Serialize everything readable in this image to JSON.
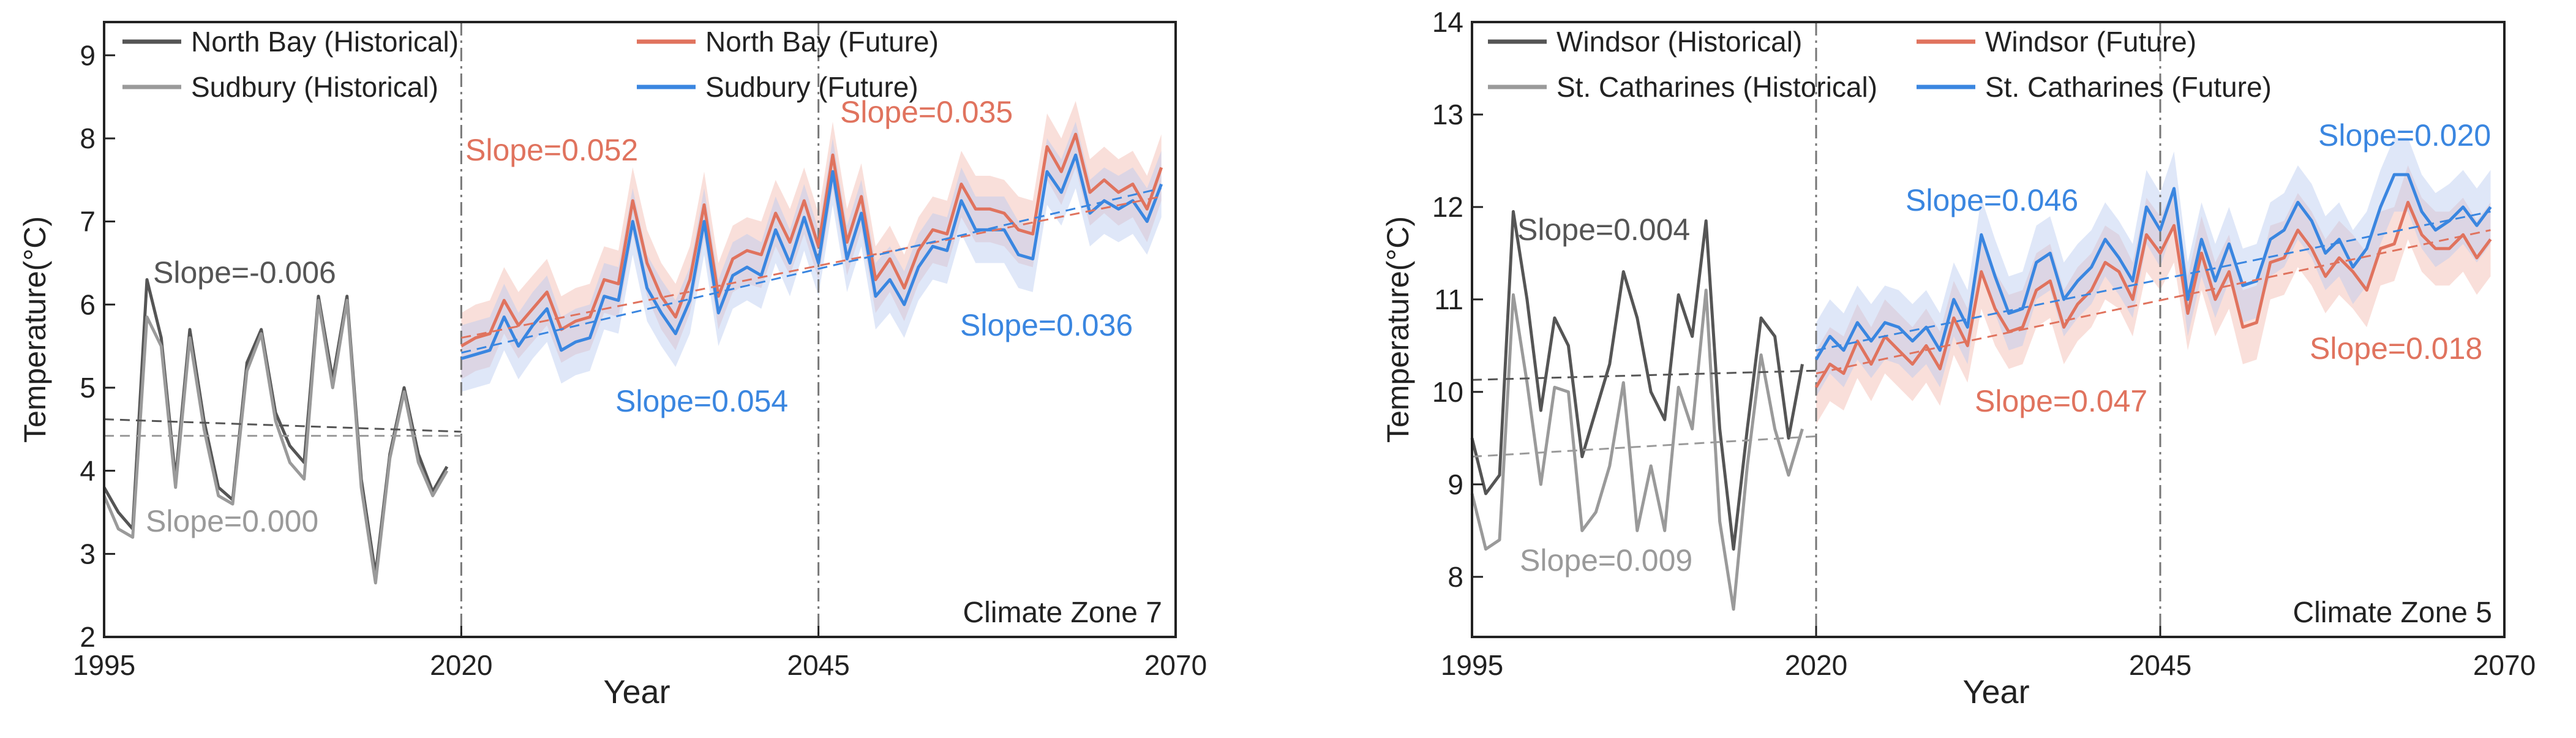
{
  "chart_data": [
    {
      "type": "line",
      "panel_label": "Climate Zone 7",
      "xlabel": "Year",
      "ylabel": "Temperature(°C)",
      "xlim": [
        1995,
        2070
      ],
      "ylim": [
        2,
        9.4
      ],
      "x_ticks": [
        1995,
        2020,
        2045,
        2070
      ],
      "y_ticks": [
        2,
        3,
        4,
        5,
        6,
        7,
        8,
        9
      ],
      "dividers": [
        2020,
        2045
      ],
      "series": [
        {
          "name": "North Bay (Historical)",
          "color": "#555555",
          "width": 5,
          "x": [
            1995,
            1996,
            1997,
            1998,
            1999,
            2000,
            2001,
            2002,
            2003,
            2004,
            2005,
            2006,
            2007,
            2008,
            2009,
            2010,
            2011,
            2012,
            2013,
            2014,
            2015,
            2016,
            2017,
            2018,
            2019
          ],
          "values": [
            3.8,
            3.5,
            3.3,
            6.3,
            5.6,
            3.9,
            5.7,
            4.6,
            3.8,
            3.65,
            5.3,
            5.7,
            4.7,
            4.3,
            4.1,
            6.1,
            5.1,
            6.1,
            3.9,
            2.75,
            4.2,
            5.0,
            4.2,
            3.75,
            4.05
          ]
        },
        {
          "name": "Sudbury (Historical)",
          "color": "#9a9a9a",
          "width": 5,
          "x": [
            1995,
            1996,
            1997,
            1998,
            1999,
            2000,
            2001,
            2002,
            2003,
            2004,
            2005,
            2006,
            2007,
            2008,
            2009,
            2010,
            2011,
            2012,
            2013,
            2014,
            2015,
            2016,
            2017,
            2018,
            2019
          ],
          "values": [
            3.7,
            3.3,
            3.2,
            5.85,
            5.5,
            3.8,
            5.6,
            4.5,
            3.7,
            3.6,
            5.2,
            5.65,
            4.6,
            4.1,
            3.9,
            6.05,
            5.0,
            6.05,
            3.8,
            2.65,
            4.15,
            4.95,
            4.1,
            3.7,
            4.0
          ]
        },
        {
          "name": "North Bay (Future)",
          "color": "#e0735e",
          "band_color": "#f2b8ad",
          "width": 5,
          "x": [
            2020,
            2021,
            2022,
            2023,
            2024,
            2025,
            2026,
            2027,
            2028,
            2029,
            2030,
            2031,
            2032,
            2033,
            2034,
            2035,
            2036,
            2037,
            2038,
            2039,
            2040,
            2041,
            2042,
            2043,
            2044,
            2045,
            2046,
            2047,
            2048,
            2049,
            2050,
            2051,
            2052,
            2053,
            2054,
            2055,
            2056,
            2057,
            2058,
            2059,
            2060,
            2061,
            2062,
            2063,
            2064,
            2065,
            2066,
            2067,
            2068,
            2069
          ],
          "values": [
            5.5,
            5.6,
            5.65,
            6.05,
            5.75,
            5.95,
            6.15,
            5.7,
            5.8,
            5.85,
            6.3,
            6.25,
            7.25,
            6.5,
            6.1,
            5.85,
            6.3,
            7.2,
            6.1,
            6.55,
            6.65,
            6.6,
            7.1,
            6.75,
            7.25,
            6.7,
            7.8,
            6.75,
            7.3,
            6.3,
            6.55,
            6.2,
            6.65,
            6.9,
            6.85,
            7.45,
            7.15,
            7.15,
            7.1,
            6.9,
            6.85,
            7.9,
            7.6,
            8.05,
            7.35,
            7.5,
            7.35,
            7.45,
            7.15,
            7.65
          ],
          "band": 0.4
        },
        {
          "name": "Sudbury (Future)",
          "color": "#3a86e0",
          "band_color": "#b8c9f0",
          "width": 5,
          "x": [
            2020,
            2021,
            2022,
            2023,
            2024,
            2025,
            2026,
            2027,
            2028,
            2029,
            2030,
            2031,
            2032,
            2033,
            2034,
            2035,
            2036,
            2037,
            2038,
            2039,
            2040,
            2041,
            2042,
            2043,
            2044,
            2045,
            2046,
            2047,
            2048,
            2049,
            2050,
            2051,
            2052,
            2053,
            2054,
            2055,
            2056,
            2057,
            2058,
            2059,
            2060,
            2061,
            2062,
            2063,
            2064,
            2065,
            2066,
            2067,
            2068,
            2069
          ],
          "values": [
            5.35,
            5.4,
            5.45,
            5.85,
            5.5,
            5.75,
            5.95,
            5.45,
            5.55,
            5.6,
            6.1,
            6.05,
            7.0,
            6.2,
            5.9,
            5.65,
            6.05,
            7.0,
            5.9,
            6.35,
            6.45,
            6.35,
            6.9,
            6.5,
            7.05,
            6.5,
            7.6,
            6.55,
            7.1,
            6.1,
            6.3,
            6.0,
            6.45,
            6.7,
            6.65,
            7.25,
            6.9,
            6.9,
            6.9,
            6.6,
            6.55,
            7.6,
            7.35,
            7.8,
            7.1,
            7.25,
            7.15,
            7.25,
            7.0,
            7.45
          ],
          "band": 0.4
        }
      ],
      "trendlines": [
        {
          "series": "North Bay (Historical)",
          "x": [
            1995,
            2020
          ],
          "y": [
            4.62,
            4.47
          ],
          "color": "#555555"
        },
        {
          "series": "Sudbury (Historical)",
          "x": [
            1995,
            2020
          ],
          "y": [
            4.42,
            4.42
          ],
          "color": "#9a9a9a"
        },
        {
          "series": "North Bay (Future)",
          "x": [
            2020,
            2069
          ],
          "y": [
            5.6,
            7.3
          ],
          "color": "#e0735e"
        },
        {
          "series": "Sudbury (Future)",
          "x": [
            2020,
            2069
          ],
          "y": [
            5.42,
            7.4
          ],
          "color": "#3a86e0"
        }
      ],
      "annotations": [
        {
          "text": "Slope=-0.006",
          "color": "#555555"
        },
        {
          "text": "Slope=0.000",
          "color": "#9a9a9a"
        },
        {
          "text": "Slope=0.052",
          "color": "#e0735e"
        },
        {
          "text": "Slope=0.054",
          "color": "#3a86e0"
        },
        {
          "text": "Slope=0.035",
          "color": "#e0735e"
        },
        {
          "text": "Slope=0.036",
          "color": "#3a86e0"
        }
      ],
      "legend": [
        {
          "label": "North Bay (Historical)",
          "color": "#555555"
        },
        {
          "label": "North Bay (Future)",
          "color": "#e0735e"
        },
        {
          "label": "Sudbury (Historical)",
          "color": "#9a9a9a"
        },
        {
          "label": "Sudbury (Future)",
          "color": "#3a86e0"
        }
      ],
      "legend_position": "top-left"
    },
    {
      "type": "line",
      "panel_label": "Climate Zone 5",
      "xlabel": "Year",
      "ylabel": "Temperature(°C)",
      "xlim": [
        1995,
        2070
      ],
      "ylim": [
        7.35,
        14
      ],
      "x_ticks": [
        1995,
        2020,
        2045,
        2070
      ],
      "y_ticks": [
        8,
        9,
        10,
        11,
        12,
        13,
        14
      ],
      "dividers": [
        2020,
        2045
      ],
      "series": [
        {
          "name": "Windsor (Historical)",
          "color": "#555555",
          "width": 5,
          "x": [
            1995,
            1996,
            1997,
            1998,
            1999,
            2000,
            2001,
            2002,
            2003,
            2004,
            2005,
            2006,
            2007,
            2008,
            2009,
            2010,
            2011,
            2012,
            2013,
            2014,
            2015,
            2016,
            2017,
            2018,
            2019
          ],
          "values": [
            9.5,
            8.9,
            9.1,
            11.95,
            11.0,
            9.8,
            10.8,
            10.5,
            9.3,
            9.8,
            10.3,
            11.3,
            10.8,
            10.0,
            9.7,
            11.05,
            10.6,
            11.85,
            9.6,
            8.3,
            9.6,
            10.8,
            10.6,
            9.5,
            10.3
          ]
        },
        {
          "name": "St. Catharines (Historical)",
          "color": "#9a9a9a",
          "width": 5,
          "x": [
            1995,
            1996,
            1997,
            1998,
            1999,
            2000,
            2001,
            2002,
            2003,
            2004,
            2005,
            2006,
            2007,
            2008,
            2009,
            2010,
            2011,
            2012,
            2013,
            2014,
            2015,
            2016,
            2017,
            2018,
            2019
          ],
          "values": [
            8.9,
            8.3,
            8.4,
            11.05,
            10.1,
            9.0,
            10.05,
            10.0,
            8.5,
            8.7,
            9.2,
            10.1,
            8.5,
            9.2,
            8.5,
            10.05,
            9.6,
            11.1,
            8.6,
            7.65,
            9.2,
            10.4,
            9.6,
            9.1,
            9.6
          ]
        },
        {
          "name": "Windsor (Future)",
          "color": "#e0735e",
          "band_color": "#f2b8ad",
          "width": 5,
          "x": [
            2020,
            2021,
            2022,
            2023,
            2024,
            2025,
            2026,
            2027,
            2028,
            2029,
            2030,
            2031,
            2032,
            2033,
            2034,
            2035,
            2036,
            2037,
            2038,
            2039,
            2040,
            2041,
            2042,
            2043,
            2044,
            2045,
            2046,
            2047,
            2048,
            2049,
            2050,
            2051,
            2052,
            2053,
            2054,
            2055,
            2056,
            2057,
            2058,
            2059,
            2060,
            2061,
            2062,
            2063,
            2064,
            2065,
            2066,
            2067,
            2068,
            2069
          ],
          "values": [
            10.05,
            10.3,
            10.2,
            10.55,
            10.3,
            10.6,
            10.45,
            10.3,
            10.5,
            10.25,
            10.8,
            10.5,
            11.3,
            10.9,
            10.65,
            10.7,
            11.1,
            11.2,
            10.7,
            10.95,
            11.1,
            11.4,
            11.3,
            11.0,
            11.7,
            11.5,
            11.8,
            10.85,
            11.5,
            11.0,
            11.3,
            10.7,
            10.75,
            11.4,
            11.45,
            11.75,
            11.55,
            11.25,
            11.45,
            11.3,
            11.1,
            11.55,
            11.6,
            12.05,
            11.7,
            11.55,
            11.55,
            11.7,
            11.45,
            11.65
          ],
          "band": 0.4
        },
        {
          "name": "St. Catharines (Future)",
          "color": "#3a86e0",
          "band_color": "#b8c9f0",
          "width": 5,
          "x": [
            2020,
            2021,
            2022,
            2023,
            2024,
            2025,
            2026,
            2027,
            2028,
            2029,
            2030,
            2031,
            2032,
            2033,
            2034,
            2035,
            2036,
            2037,
            2038,
            2039,
            2040,
            2041,
            2042,
            2043,
            2044,
            2045,
            2046,
            2047,
            2048,
            2049,
            2050,
            2051,
            2052,
            2053,
            2054,
            2055,
            2056,
            2057,
            2058,
            2059,
            2060,
            2061,
            2062,
            2063,
            2064,
            2065,
            2066,
            2067,
            2068,
            2069
          ],
          "values": [
            10.35,
            10.6,
            10.45,
            10.75,
            10.55,
            10.75,
            10.7,
            10.55,
            10.7,
            10.45,
            11.0,
            10.7,
            11.7,
            11.25,
            10.85,
            10.9,
            11.4,
            11.5,
            11.0,
            11.2,
            11.35,
            11.65,
            11.45,
            11.2,
            12.0,
            11.75,
            12.2,
            11.0,
            11.65,
            11.2,
            11.6,
            11.15,
            11.2,
            11.65,
            11.75,
            12.05,
            11.85,
            11.5,
            11.65,
            11.35,
            11.55,
            12.0,
            12.35,
            12.35,
            11.95,
            11.75,
            11.85,
            12.0,
            11.8,
            12.0
          ],
          "band": 0.4
        }
      ],
      "trendlines": [
        {
          "series": "Windsor (Historical)",
          "x": [
            1995,
            2020
          ],
          "y": [
            10.13,
            10.23
          ],
          "color": "#555555"
        },
        {
          "series": "St. Catharines (Historical)",
          "x": [
            1995,
            2020
          ],
          "y": [
            9.3,
            9.52
          ],
          "color": "#9a9a9a"
        },
        {
          "series": "Windsor (Future)",
          "x": [
            2020,
            2069
          ],
          "y": [
            10.2,
            11.75
          ],
          "color": "#e0735e"
        },
        {
          "series": "St. Catharines (Future)",
          "x": [
            2020,
            2069
          ],
          "y": [
            10.45,
            11.95
          ],
          "color": "#3a86e0"
        }
      ],
      "annotations": [
        {
          "text": "Slope=0.004",
          "color": "#555555"
        },
        {
          "text": "Slope=0.009",
          "color": "#9a9a9a"
        },
        {
          "text": "Slope=0.046",
          "color": "#3a86e0"
        },
        {
          "text": "Slope=0.047",
          "color": "#e0735e"
        },
        {
          "text": "Slope=0.020",
          "color": "#3a86e0"
        },
        {
          "text": "Slope=0.018",
          "color": "#e0735e"
        }
      ],
      "legend": [
        {
          "label": "Windsor (Historical)",
          "color": "#555555"
        },
        {
          "label": "Windsor (Future)",
          "color": "#e0735e"
        },
        {
          "label": "St. Catharines (Historical)",
          "color": "#9a9a9a"
        },
        {
          "label": "St. Catharines (Future)",
          "color": "#3a86e0"
        }
      ],
      "legend_position": "top-left"
    }
  ]
}
